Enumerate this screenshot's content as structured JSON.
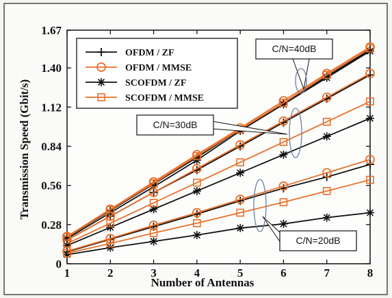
{
  "chart_data": {
    "type": "line",
    "xlabel": "Number of Antennas",
    "ylabel": "Transmission Speed (Gbit/s)",
    "x": [
      1,
      2,
      3,
      4,
      5,
      6,
      7,
      8
    ],
    "xlim": [
      1,
      8
    ],
    "ylim": [
      0,
      1.67
    ],
    "yticks": [
      "0",
      "0.28",
      "0.56",
      "0.84",
      "1.12",
      "1.40",
      "1.67"
    ],
    "xticks": [
      "1",
      "2",
      "3",
      "4",
      "5",
      "6",
      "7",
      "8"
    ],
    "grid": false,
    "legend_position": "top-left",
    "legend": [
      "OFDM / ZF",
      "OFDM / MMSE",
      "SCOFDM / ZF",
      "SCOFDM / MMSE"
    ],
    "callouts": [
      "C/N=40dB",
      "C/N=30dB",
      "C/N=20dB"
    ],
    "series": [
      {
        "name": "OFDM / ZF",
        "group": "C/N=40dB",
        "color": "#111111",
        "marker": "plus",
        "values": [
          0.19,
          0.38,
          0.57,
          0.76,
          0.96,
          1.15,
          1.34,
          1.53
        ]
      },
      {
        "name": "OFDM / MMSE",
        "group": "C/N=40dB",
        "color": "#e8702a",
        "marker": "circle",
        "values": [
          0.195,
          0.39,
          0.585,
          0.78,
          0.97,
          1.165,
          1.36,
          1.55
        ]
      },
      {
        "name": "SCOFDM / ZF",
        "group": "C/N=40dB",
        "color": "#111111",
        "marker": "star",
        "values": [
          0.18,
          0.365,
          0.55,
          0.74,
          0.95,
          1.14,
          1.33,
          1.52
        ]
      },
      {
        "name": "SCOFDM / MMSE",
        "group": "C/N=40dB",
        "color": "#e8702a",
        "marker": "square",
        "values": [
          0.19,
          0.385,
          0.575,
          0.77,
          0.96,
          1.15,
          1.35,
          1.54
        ]
      },
      {
        "name": "OFDM / ZF",
        "group": "C/N=30dB",
        "color": "#111111",
        "marker": "plus",
        "values": [
          0.17,
          0.34,
          0.51,
          0.67,
          0.84,
          1.01,
          1.18,
          1.35
        ]
      },
      {
        "name": "OFDM / MMSE",
        "group": "C/N=30dB",
        "color": "#e8702a",
        "marker": "circle",
        "values": [
          0.17,
          0.34,
          0.51,
          0.68,
          0.85,
          1.02,
          1.19,
          1.36
        ]
      },
      {
        "name": "SCOFDM / ZF",
        "group": "C/N=30dB",
        "color": "#111111",
        "marker": "star",
        "values": [
          0.13,
          0.26,
          0.39,
          0.52,
          0.65,
          0.78,
          0.91,
          1.04
        ]
      },
      {
        "name": "SCOFDM / MMSE",
        "group": "C/N=30dB",
        "color": "#e8702a",
        "marker": "square",
        "values": [
          0.145,
          0.29,
          0.435,
          0.58,
          0.725,
          0.87,
          1.015,
          1.16
        ]
      },
      {
        "name": "OFDM / ZF",
        "group": "C/N=20dB",
        "color": "#111111",
        "marker": "plus",
        "values": [
          0.085,
          0.175,
          0.265,
          0.355,
          0.45,
          0.54,
          0.62,
          0.71
        ]
      },
      {
        "name": "OFDM / MMSE",
        "group": "C/N=20dB",
        "color": "#e8702a",
        "marker": "circle",
        "values": [
          0.09,
          0.18,
          0.275,
          0.365,
          0.46,
          0.555,
          0.65,
          0.745
        ]
      },
      {
        "name": "SCOFDM / ZF",
        "group": "C/N=20dB",
        "color": "#111111",
        "marker": "star",
        "values": [
          0.065,
          0.115,
          0.16,
          0.205,
          0.255,
          0.285,
          0.33,
          0.365
        ]
      },
      {
        "name": "SCOFDM / MMSE",
        "group": "C/N=20dB",
        "color": "#e8702a",
        "marker": "square",
        "values": [
          0.075,
          0.145,
          0.22,
          0.29,
          0.365,
          0.44,
          0.52,
          0.6
        ]
      }
    ]
  }
}
